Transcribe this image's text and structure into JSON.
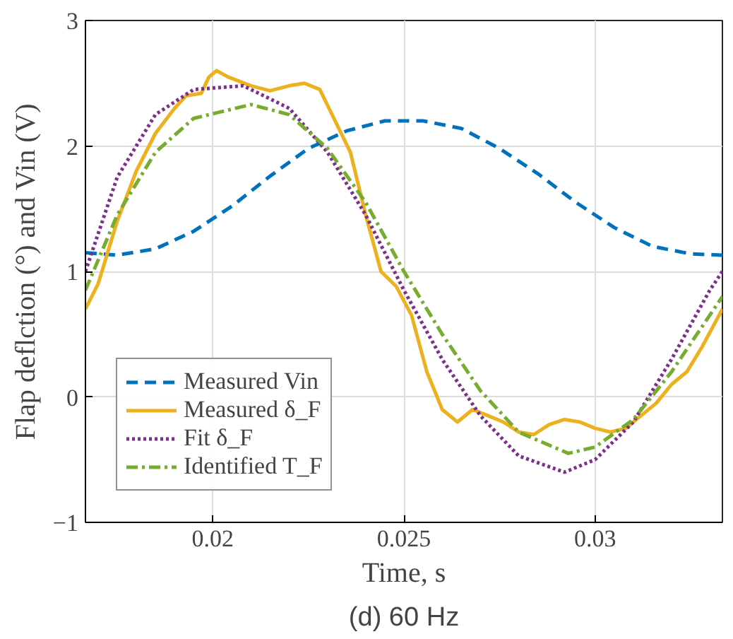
{
  "chart_data": {
    "type": "line",
    "xlabel": "Time, s",
    "ylabel": "Flap deflction (°) and Vin (V)",
    "annotations": [
      "(d) 60 Hz"
    ],
    "xlim": [
      0.01667,
      0.03333
    ],
    "ylim": [
      -1,
      3
    ],
    "xticks": [
      0.02,
      0.025,
      0.03
    ],
    "yticks": [
      -1,
      0,
      1,
      2,
      3
    ],
    "grid": true,
    "legend": "bottom left",
    "series": [
      {
        "name": "Measured Vin",
        "color": "#0072bd",
        "line_style": "dashed",
        "x": [
          0.01667,
          0.0175,
          0.0185,
          0.0195,
          0.0205,
          0.0215,
          0.0225,
          0.0235,
          0.0245,
          0.0255,
          0.0265,
          0.0275,
          0.0285,
          0.0295,
          0.0305,
          0.0315,
          0.0325,
          0.03333
        ],
        "values": [
          1.15,
          1.13,
          1.18,
          1.32,
          1.52,
          1.76,
          1.98,
          2.12,
          2.2,
          2.2,
          2.14,
          1.98,
          1.78,
          1.55,
          1.35,
          1.2,
          1.14,
          1.13
        ]
      },
      {
        "name": "Measured δ_F",
        "color": "#edb120",
        "line_style": "solid",
        "x": [
          0.01667,
          0.017,
          0.0175,
          0.018,
          0.0185,
          0.019,
          0.0193,
          0.0197,
          0.0199,
          0.0201,
          0.0204,
          0.021,
          0.0215,
          0.022,
          0.0224,
          0.0228,
          0.0232,
          0.0236,
          0.024,
          0.0244,
          0.0248,
          0.0252,
          0.0256,
          0.026,
          0.0264,
          0.0268,
          0.0272,
          0.0276,
          0.028,
          0.0284,
          0.0288,
          0.0292,
          0.0296,
          0.03,
          0.0304,
          0.0308,
          0.0312,
          0.0316,
          0.032,
          0.0324,
          0.0328,
          0.03333
        ],
        "values": [
          0.7,
          0.9,
          1.4,
          1.8,
          2.1,
          2.3,
          2.4,
          2.42,
          2.55,
          2.6,
          2.55,
          2.48,
          2.44,
          2.48,
          2.5,
          2.45,
          2.2,
          1.95,
          1.45,
          1.0,
          0.88,
          0.65,
          0.2,
          -0.1,
          -0.2,
          -0.1,
          -0.15,
          -0.2,
          -0.28,
          -0.3,
          -0.22,
          -0.18,
          -0.2,
          -0.25,
          -0.28,
          -0.25,
          -0.15,
          -0.05,
          0.1,
          0.2,
          0.4,
          0.7
        ]
      },
      {
        "name": "Fit δ_F",
        "color": "#7e2f8e",
        "line_style": "dotted",
        "x": [
          0.01667,
          0.0175,
          0.0185,
          0.0195,
          0.0208,
          0.022,
          0.023,
          0.024,
          0.025,
          0.026,
          0.027,
          0.028,
          0.0292,
          0.03,
          0.031,
          0.032,
          0.033,
          0.03333
        ],
        "values": [
          1.0,
          1.75,
          2.25,
          2.45,
          2.48,
          2.3,
          1.95,
          1.45,
          0.85,
          0.3,
          -0.15,
          -0.47,
          -0.6,
          -0.5,
          -0.2,
          0.3,
          0.85,
          1.0
        ]
      },
      {
        "name": "Identified T_F",
        "color": "#77ac30",
        "line_style": "dashdot",
        "x": [
          0.01667,
          0.0175,
          0.0185,
          0.0195,
          0.021,
          0.022,
          0.023,
          0.024,
          0.025,
          0.026,
          0.027,
          0.028,
          0.0293,
          0.03,
          0.031,
          0.032,
          0.03333
        ],
        "values": [
          0.85,
          1.45,
          1.95,
          2.22,
          2.33,
          2.25,
          1.98,
          1.55,
          1.0,
          0.5,
          0.05,
          -0.28,
          -0.45,
          -0.4,
          -0.18,
          0.2,
          0.8
        ]
      }
    ]
  }
}
